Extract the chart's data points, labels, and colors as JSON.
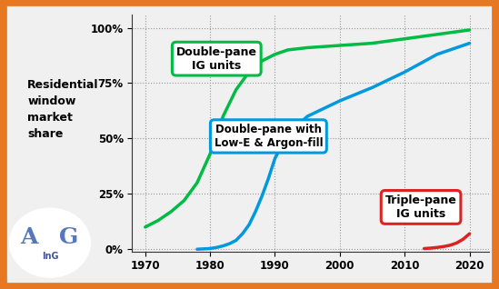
{
  "background_color": "#f0f0f0",
  "border_color": "#e87722",
  "grid_color": "#999999",
  "double_pane_ig": {
    "x": [
      1970,
      1972,
      1974,
      1976,
      1978,
      1980,
      1982,
      1984,
      1986,
      1988,
      1990,
      1992,
      1995,
      2000,
      2005,
      2010,
      2015,
      2020
    ],
    "y": [
      10,
      13,
      17,
      22,
      30,
      43,
      60,
      72,
      80,
      85,
      88,
      90,
      91,
      92,
      93,
      95,
      97,
      99
    ],
    "color": "#00bb44",
    "label": "Double-pane\nIG units"
  },
  "double_pane_lowe": {
    "x": [
      1978,
      1980,
      1981,
      1982,
      1983,
      1984,
      1985,
      1986,
      1987,
      1988,
      1989,
      1990,
      1992,
      1995,
      2000,
      2005,
      2010,
      2015,
      2020
    ],
    "y": [
      0,
      0.3,
      0.8,
      1.5,
      2.5,
      4,
      7,
      11,
      17,
      24,
      32,
      41,
      52,
      60,
      67,
      73,
      80,
      88,
      93
    ],
    "color": "#0099dd",
    "label": "Double-pane with\nLow-E & Argon-fill"
  },
  "triple_pane_ig": {
    "x": [
      2013,
      2014,
      2015,
      2016,
      2017,
      2018,
      2019,
      2020
    ],
    "y": [
      0.3,
      0.5,
      0.8,
      1.2,
      1.8,
      2.8,
      4.5,
      7.0
    ],
    "color": "#dd2222",
    "label": "Triple-pane\nIG units"
  },
  "ylabel": "Residential\nwindow\nmarket\nshare",
  "xticks": [
    1970,
    1980,
    1990,
    2000,
    2010,
    2020
  ],
  "yticks": [
    0,
    25,
    50,
    75,
    100
  ],
  "ytick_labels": [
    "0%",
    "25%",
    "50%",
    "75%",
    "100%"
  ],
  "xlim": [
    1968,
    2023
  ],
  "ylim": [
    -1,
    106
  ]
}
